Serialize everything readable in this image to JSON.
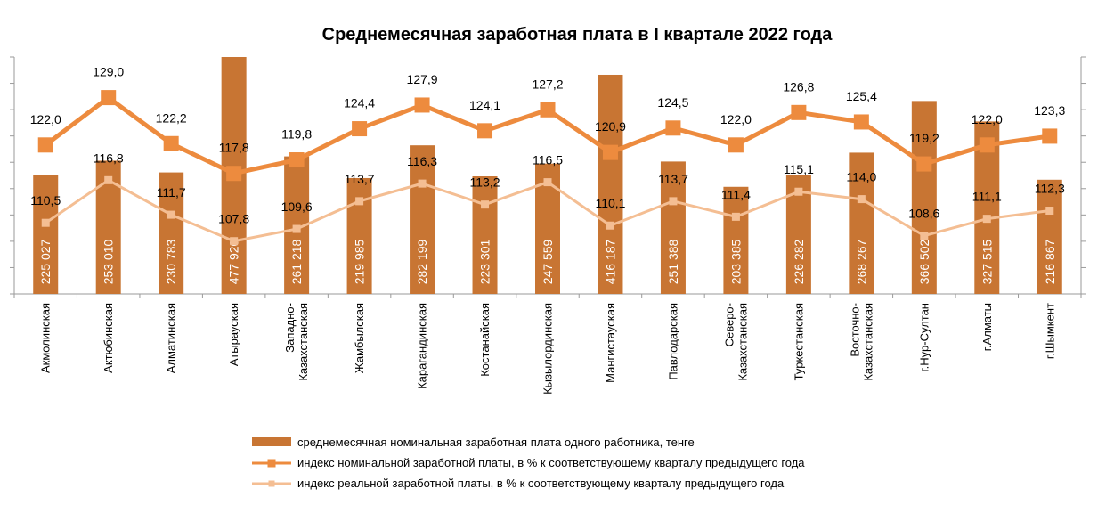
{
  "chart_data": {
    "type": "bar+line",
    "title": "Среднемесячная заработная плата в I квартале 2022 года",
    "categories": [
      [
        "Акмолинская"
      ],
      [
        "Актюбинская"
      ],
      [
        "Алматинская"
      ],
      [
        "Атырауская"
      ],
      [
        "Западно-",
        "Казахстанская"
      ],
      [
        "Жамбылская"
      ],
      [
        "Карагандинская"
      ],
      [
        "Костанайская"
      ],
      [
        "Кызылординская"
      ],
      [
        "Мангистауская"
      ],
      [
        "Павлодарская"
      ],
      [
        "Северо-",
        "Казахстанская"
      ],
      [
        "Туркестанская"
      ],
      [
        "Восточно-",
        "Казахстанская"
      ],
      [
        "г.Нур-Султан"
      ],
      [
        "г.Алматы"
      ],
      [
        "г.Шымкент"
      ]
    ],
    "bar_series": {
      "name": "среднемесячная номинальная заработная плата одного работника, тенге",
      "color": "#C87533",
      "values": [
        225027,
        253010,
        230783,
        477920,
        261218,
        219985,
        282199,
        223301,
        247559,
        416187,
        251388,
        203385,
        226282,
        268267,
        366502,
        327515,
        216867
      ],
      "labels": [
        "225 027",
        "253 010",
        "230 783",
        "477 920",
        "261 218",
        "219 985",
        "282 199",
        "223 301",
        "247 559",
        "416 187",
        "251 388",
        "203 385",
        "226 282",
        "268 267",
        "366 502",
        "327 515",
        "216 867"
      ]
    },
    "line_series": [
      {
        "name": "индекс номинальной заработной платы, в % к соответствующему кварталу предыдущего года",
        "color": "#ED8B3E",
        "values": [
          122.0,
          129.0,
          122.2,
          117.8,
          119.8,
          124.4,
          127.9,
          124.1,
          127.2,
          120.9,
          124.5,
          122.0,
          126.8,
          125.4,
          119.2,
          122.0,
          123.3
        ],
        "labels": [
          "122,0",
          "129,0",
          "122,2",
          "117,8",
          "119,8",
          "124,4",
          "127,9",
          "124,1",
          "127,2",
          "120,9",
          "124,5",
          "122,0",
          "126,8",
          "125,4",
          "119,2",
          "122,0",
          "123,3"
        ]
      },
      {
        "name": "индекс реальной заработной платы, в % к соответствующему кварталу предыдущего года",
        "color": "#F4BE93",
        "values": [
          110.5,
          116.8,
          111.7,
          107.8,
          109.6,
          113.7,
          116.3,
          113.2,
          116.5,
          110.1,
          113.7,
          111.4,
          115.1,
          114.0,
          108.6,
          111.1,
          112.3
        ],
        "labels": [
          "110,5",
          "116,8",
          "111,7",
          "107,8",
          "109,6",
          "113,7",
          "116,3",
          "113,2",
          "116,5",
          "110,1",
          "113,7",
          "111,4",
          "115,1",
          "114,0",
          "108,6",
          "111,1",
          "112,3"
        ]
      }
    ],
    "bar_axis": {
      "ylim": [
        0,
        450000
      ]
    },
    "line_axis": {
      "ylim": [
        100,
        135
      ]
    },
    "grid": false,
    "legend_position": "bottom"
  }
}
